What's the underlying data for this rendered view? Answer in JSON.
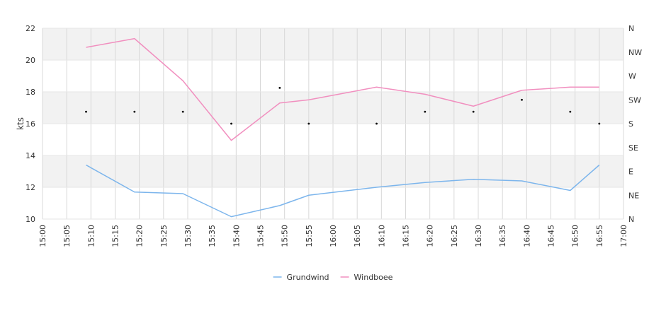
{
  "chart_data": {
    "type": "line",
    "title": "",
    "xlabel": "",
    "ylabel": "kts",
    "ylim": [
      10,
      22
    ],
    "y_ticks": [
      "10",
      "12",
      "14",
      "16",
      "18",
      "20",
      "22"
    ],
    "x_range": [
      "15:00",
      "17:00"
    ],
    "x_ticks": [
      "15:00",
      "15:05",
      "15:10",
      "15:15",
      "15:20",
      "15:25",
      "15:30",
      "15:35",
      "15:40",
      "15:45",
      "15:50",
      "15:55",
      "16:00",
      "16:05",
      "16:10",
      "16:15",
      "16:20",
      "16:25",
      "16:30",
      "16:35",
      "16:40",
      "16:45",
      "16:50",
      "16:55",
      "17:00"
    ],
    "y2_ticks": [
      "N",
      "NE",
      "E",
      "SE",
      "S",
      "SW",
      "W",
      "NW",
      "N"
    ],
    "grid": true,
    "legend_position": "bottom",
    "series": [
      {
        "name": "Grundwind",
        "color": "#7cb5ec",
        "points": [
          {
            "x": "15:09",
            "y": 13.4
          },
          {
            "x": "15:19",
            "y": 11.7
          },
          {
            "x": "15:29",
            "y": 11.6
          },
          {
            "x": "15:39",
            "y": 10.15
          },
          {
            "x": "15:49",
            "y": 10.85
          },
          {
            "x": "15:55",
            "y": 11.5
          },
          {
            "x": "16:09",
            "y": 12.0
          },
          {
            "x": "16:19",
            "y": 12.3
          },
          {
            "x": "16:29",
            "y": 12.5
          },
          {
            "x": "16:39",
            "y": 12.4
          },
          {
            "x": "16:49",
            "y": 11.8
          },
          {
            "x": "16:55",
            "y": 13.4
          }
        ]
      },
      {
        "name": "Windboee",
        "color": "#f18fbf",
        "points": [
          {
            "x": "15:09",
            "y": 20.8
          },
          {
            "x": "15:19",
            "y": 21.35
          },
          {
            "x": "15:29",
            "y": 18.7
          },
          {
            "x": "15:39",
            "y": 14.95
          },
          {
            "x": "15:49",
            "y": 17.3
          },
          {
            "x": "15:55",
            "y": 17.5
          },
          {
            "x": "16:09",
            "y": 18.3
          },
          {
            "x": "16:19",
            "y": 17.85
          },
          {
            "x": "16:29",
            "y": 17.1
          },
          {
            "x": "16:39",
            "y": 18.1
          },
          {
            "x": "16:49",
            "y": 18.3
          },
          {
            "x": "16:55",
            "y": 18.3
          }
        ]
      }
    ],
    "direction_points": [
      {
        "x": "15:09",
        "dir": "SSW"
      },
      {
        "x": "15:19",
        "dir": "SSW"
      },
      {
        "x": "15:29",
        "dir": "SSW"
      },
      {
        "x": "15:39",
        "dir": "S"
      },
      {
        "x": "15:49",
        "dir": "WSW"
      },
      {
        "x": "15:55",
        "dir": "S"
      },
      {
        "x": "16:09",
        "dir": "S"
      },
      {
        "x": "16:19",
        "dir": "SSW"
      },
      {
        "x": "16:29",
        "dir": "SSW"
      },
      {
        "x": "16:39",
        "dir": "SW"
      },
      {
        "x": "16:49",
        "dir": "SSW"
      },
      {
        "x": "16:55",
        "dir": "S"
      }
    ]
  }
}
